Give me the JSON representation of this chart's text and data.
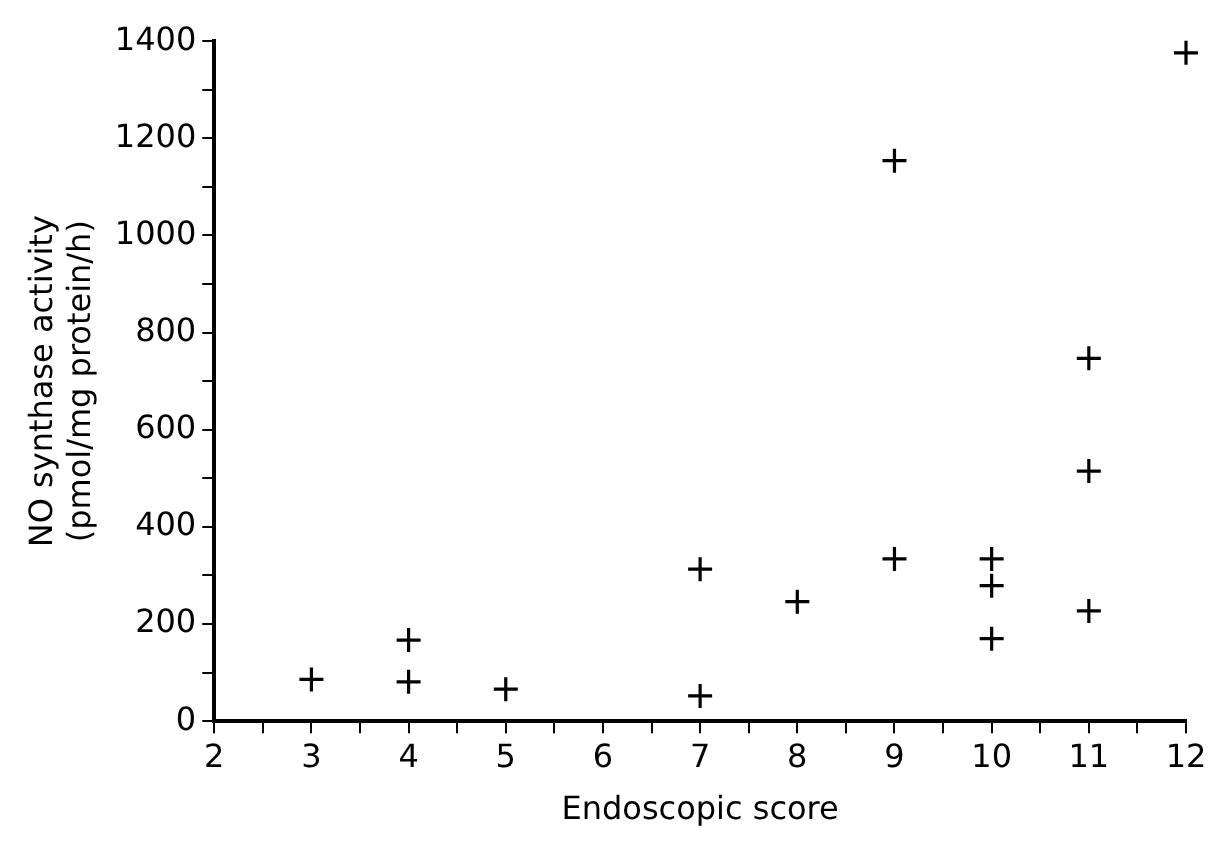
{
  "chart_data": {
    "type": "scatter",
    "xlabel": "Endoscopic score",
    "ylabel": "NO synthase activity\n(pmol/mg protein/h)",
    "x": [
      3,
      4,
      4,
      5,
      7,
      7,
      8,
      9,
      9,
      10,
      10,
      10,
      11,
      11,
      11,
      12
    ],
    "values": [
      86,
      167,
      81,
      66,
      313,
      52,
      246,
      1154,
      334,
      334,
      279,
      170,
      747,
      515,
      227,
      1376
    ],
    "color": "#000000",
    "marker": "cross",
    "grid": false,
    "legend": false,
    "xlim": [
      2,
      12
    ],
    "xticks": [
      2,
      {
        "value": 2.5,
        "label": null
      },
      3,
      {
        "value": 3.5,
        "label": null
      },
      4,
      {
        "value": 4.5,
        "label": null
      },
      5,
      {
        "value": 5.5,
        "label": null
      },
      6,
      {
        "value": 6.5,
        "label": null
      },
      7,
      {
        "value": 7.5,
        "label": null
      },
      8,
      {
        "value": 8.5,
        "label": null
      },
      9,
      {
        "value": 9.5,
        "label": null
      },
      10,
      {
        "value": 10.5,
        "label": null
      },
      11,
      {
        "value": 11.5,
        "label": null
      },
      12
    ],
    "ylim": [
      0,
      1400
    ],
    "yticks": [
      0,
      {
        "value": 100,
        "label": null
      },
      200,
      {
        "value": 300,
        "label": null
      },
      400,
      {
        "value": 500,
        "label": null
      },
      600,
      {
        "value": 700,
        "label": null
      },
      800,
      {
        "value": 900,
        "label": null
      },
      1000,
      {
        "value": 1100,
        "label": null
      },
      1200,
      {
        "value": 1300,
        "label": null
      },
      1400
    ]
  }
}
